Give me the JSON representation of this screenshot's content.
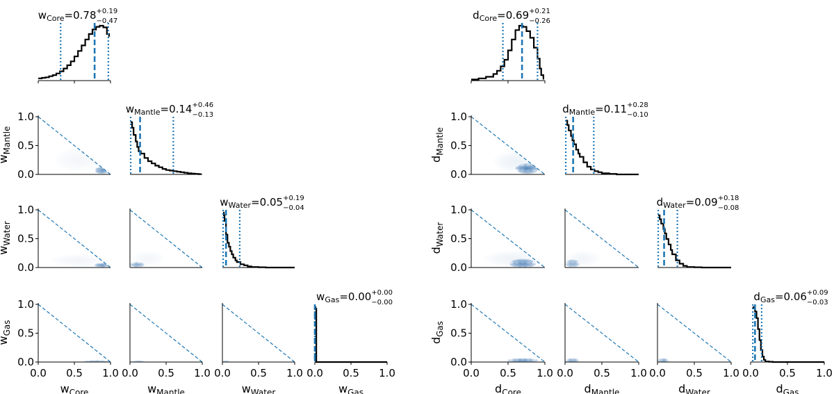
{
  "chart_data": {
    "type": "corner",
    "colors": {
      "accent": "#1f77b4",
      "density": "#08519c",
      "line": "#000000"
    },
    "panels": [
      {
        "name": "w",
        "params": [
          {
            "key": "Core",
            "label": "Core",
            "median": "0.78",
            "plus": "+0.19",
            "minus": "−0.47",
            "m": 0.78,
            "lo": 0.31,
            "hi": 0.97
          },
          {
            "key": "Mantle",
            "label": "Mantle",
            "median": "0.14",
            "plus": "+0.46",
            "minus": "−0.13",
            "m": 0.14,
            "lo": 0.01,
            "hi": 0.6
          },
          {
            "key": "Water",
            "label": "Water",
            "median": "0.05",
            "plus": "+0.19",
            "minus": "−0.04",
            "m": 0.05,
            "lo": 0.01,
            "hi": 0.24
          },
          {
            "key": "Gas",
            "label": "Gas",
            "median": "0.00",
            "plus": "+0.00",
            "minus": "−0.00",
            "m": 0.0,
            "lo": 0.0,
            "hi": 0.0
          }
        ],
        "hists": [
          {
            "x": [
              0.0,
              0.05,
              0.1,
              0.15,
              0.2,
              0.25,
              0.3,
              0.35,
              0.4,
              0.45,
              0.5,
              0.55,
              0.6,
              0.65,
              0.7,
              0.75,
              0.8,
              0.85,
              0.9,
              0.95,
              0.98
            ],
            "y": [
              0.04,
              0.05,
              0.06,
              0.08,
              0.1,
              0.13,
              0.17,
              0.22,
              0.28,
              0.35,
              0.44,
              0.54,
              0.64,
              0.75,
              0.85,
              0.93,
              0.98,
              1.0,
              0.97,
              0.85,
              0.8
            ]
          },
          {
            "x": [
              0.01,
              0.03,
              0.05,
              0.08,
              0.1,
              0.12,
              0.15,
              0.2,
              0.25,
              0.3,
              0.35,
              0.4,
              0.45,
              0.5,
              0.55,
              0.6,
              0.65,
              0.7,
              0.75,
              0.8,
              0.85,
              0.9,
              0.95,
              0.98
            ],
            "y": [
              0.95,
              0.85,
              0.72,
              0.6,
              0.5,
              0.42,
              0.38,
              0.3,
              0.24,
              0.2,
              0.16,
              0.13,
              0.1,
              0.08,
              0.07,
              0.06,
              0.05,
              0.04,
              0.03,
              0.02,
              0.015,
              0.01,
              0.005,
              0.0
            ]
          },
          {
            "x": [
              0.01,
              0.02,
              0.03,
              0.05,
              0.07,
              0.09,
              0.11,
              0.13,
              0.15,
              0.18,
              0.2,
              0.25,
              0.3,
              0.35,
              0.4,
              0.5,
              0.6,
              0.7,
              0.8,
              0.9,
              1.0
            ],
            "y": [
              1.0,
              0.95,
              0.85,
              0.6,
              0.45,
              0.38,
              0.3,
              0.24,
              0.18,
              0.13,
              0.1,
              0.06,
              0.04,
              0.02,
              0.01,
              0.005,
              0.0,
              0.0,
              0.0,
              0.0,
              0.0
            ]
          },
          {
            "x": [
              0.0,
              0.01,
              0.02,
              0.05,
              0.1,
              0.2,
              0.3,
              0.4,
              0.5,
              0.6,
              0.7,
              0.8,
              0.9,
              1.0
            ],
            "y": [
              1.0,
              0.97,
              0.0,
              0.0,
              0.0,
              0.0,
              0.0,
              0.0,
              0.0,
              0.0,
              0.0,
              0.0,
              0.0,
              0.0
            ]
          }
        ],
        "blobs": [
          {
            "row": 1,
            "col": 0,
            "cx": 0.88,
            "cy": 0.07,
            "rx": 0.1,
            "ry": 0.06,
            "a": 0.55
          },
          {
            "row": 1,
            "col": 0,
            "cx": 0.55,
            "cy": 0.25,
            "rx": 0.35,
            "ry": 0.22,
            "a": 0.05
          },
          {
            "row": 2,
            "col": 0,
            "cx": 0.88,
            "cy": 0.04,
            "rx": 0.1,
            "ry": 0.04,
            "a": 0.5
          },
          {
            "row": 2,
            "col": 0,
            "cx": 0.55,
            "cy": 0.12,
            "rx": 0.4,
            "ry": 0.12,
            "a": 0.06
          },
          {
            "row": 2,
            "col": 1,
            "cx": 0.1,
            "cy": 0.05,
            "rx": 0.1,
            "ry": 0.05,
            "a": 0.4
          },
          {
            "row": 2,
            "col": 1,
            "cx": 0.25,
            "cy": 0.15,
            "rx": 0.25,
            "ry": 0.15,
            "a": 0.05
          },
          {
            "row": 3,
            "col": 0,
            "cx": 0.8,
            "cy": 0.01,
            "rx": 0.18,
            "ry": 0.015,
            "a": 0.35
          },
          {
            "row": 3,
            "col": 1,
            "cx": 0.12,
            "cy": 0.01,
            "rx": 0.1,
            "ry": 0.015,
            "a": 0.3
          },
          {
            "row": 3,
            "col": 2,
            "cx": 0.05,
            "cy": 0.01,
            "rx": 0.06,
            "ry": 0.015,
            "a": 0.3
          }
        ],
        "ticks": [
          "0.0",
          "0.5",
          "1.0"
        ]
      },
      {
        "name": "d",
        "params": [
          {
            "key": "Core",
            "label": "Core",
            "median": "0.69",
            "plus": "+0.21",
            "minus": "−0.26",
            "m": 0.69,
            "lo": 0.43,
            "hi": 0.9
          },
          {
            "key": "Mantle",
            "label": "Mantle",
            "median": "0.11",
            "plus": "+0.28",
            "minus": "−0.10",
            "m": 0.11,
            "lo": 0.01,
            "hi": 0.39
          },
          {
            "key": "Water",
            "label": "Water",
            "median": "0.09",
            "plus": "+0.18",
            "minus": "−0.08",
            "m": 0.09,
            "lo": 0.01,
            "hi": 0.27
          },
          {
            "key": "Gas",
            "label": "Gas",
            "median": "0.06",
            "plus": "+0.09",
            "minus": "−0.03",
            "m": 0.06,
            "lo": 0.03,
            "hi": 0.15
          }
        ],
        "hists": [
          {
            "x": [
              0.0,
              0.1,
              0.2,
              0.3,
              0.35,
              0.4,
              0.45,
              0.5,
              0.55,
              0.6,
              0.65,
              0.7,
              0.75,
              0.8,
              0.85,
              0.9,
              0.93,
              0.95,
              0.98
            ],
            "y": [
              0.02,
              0.04,
              0.07,
              0.12,
              0.18,
              0.26,
              0.38,
              0.55,
              0.75,
              0.92,
              1.0,
              0.98,
              0.9,
              0.78,
              0.6,
              0.4,
              0.22,
              0.1,
              0.02
            ]
          },
          {
            "x": [
              0.01,
              0.03,
              0.05,
              0.08,
              0.1,
              0.12,
              0.15,
              0.18,
              0.2,
              0.25,
              0.3,
              0.35,
              0.4,
              0.45,
              0.5,
              0.6,
              0.7,
              0.8,
              0.9,
              1.0
            ],
            "y": [
              0.98,
              0.9,
              0.8,
              0.7,
              0.62,
              0.55,
              0.45,
              0.38,
              0.32,
              0.22,
              0.14,
              0.09,
              0.06,
              0.04,
              0.02,
              0.01,
              0.0,
              0.0,
              0.0,
              0.0
            ]
          },
          {
            "x": [
              0.01,
              0.03,
              0.05,
              0.08,
              0.1,
              0.12,
              0.15,
              0.18,
              0.2,
              0.25,
              0.3,
              0.35,
              0.4,
              0.5,
              0.6,
              0.7,
              0.8,
              0.9,
              1.0
            ],
            "y": [
              0.95,
              0.88,
              0.8,
              0.7,
              0.62,
              0.52,
              0.42,
              0.32,
              0.24,
              0.13,
              0.07,
              0.03,
              0.01,
              0.005,
              0.0,
              0.0,
              0.0,
              0.0,
              0.0
            ]
          },
          {
            "x": [
              0.02,
              0.04,
              0.06,
              0.08,
              0.1,
              0.12,
              0.14,
              0.16,
              0.18,
              0.2,
              0.25,
              0.3,
              0.4,
              0.5,
              0.6,
              0.7,
              0.8,
              0.9,
              1.0
            ],
            "y": [
              0.98,
              1.0,
              0.92,
              0.8,
              0.6,
              0.4,
              0.22,
              0.1,
              0.04,
              0.01,
              0.005,
              0.0,
              0.0,
              0.0,
              0.0,
              0.0,
              0.0,
              0.0,
              0.0
            ]
          }
        ],
        "blobs": [
          {
            "row": 1,
            "col": 0,
            "cx": 0.76,
            "cy": 0.1,
            "rx": 0.16,
            "ry": 0.09,
            "a": 0.6
          },
          {
            "row": 1,
            "col": 0,
            "cx": 0.6,
            "cy": 0.22,
            "rx": 0.32,
            "ry": 0.2,
            "a": 0.08
          },
          {
            "row": 2,
            "col": 0,
            "cx": 0.7,
            "cy": 0.07,
            "rx": 0.18,
            "ry": 0.08,
            "a": 0.55
          },
          {
            "row": 2,
            "col": 0,
            "cx": 0.55,
            "cy": 0.15,
            "rx": 0.4,
            "ry": 0.15,
            "a": 0.07
          },
          {
            "row": 2,
            "col": 1,
            "cx": 0.1,
            "cy": 0.07,
            "rx": 0.1,
            "ry": 0.07,
            "a": 0.4
          },
          {
            "row": 2,
            "col": 1,
            "cx": 0.25,
            "cy": 0.15,
            "rx": 0.25,
            "ry": 0.15,
            "a": 0.06
          },
          {
            "row": 3,
            "col": 0,
            "cx": 0.7,
            "cy": 0.03,
            "rx": 0.22,
            "ry": 0.035,
            "a": 0.55
          },
          {
            "row": 3,
            "col": 1,
            "cx": 0.1,
            "cy": 0.03,
            "rx": 0.1,
            "ry": 0.035,
            "a": 0.45
          },
          {
            "row": 3,
            "col": 2,
            "cx": 0.08,
            "cy": 0.03,
            "rx": 0.08,
            "ry": 0.035,
            "a": 0.45
          }
        ],
        "ticks": [
          "0.0",
          "0.5",
          "1.0"
        ]
      }
    ]
  }
}
